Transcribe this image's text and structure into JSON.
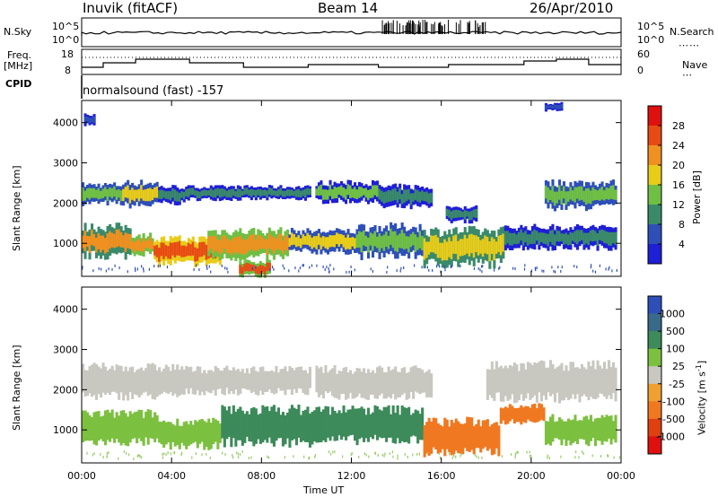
{
  "header": {
    "station": "Inuvik (fitACF)",
    "beam": "Beam 14",
    "date": "26/Apr/2010"
  },
  "top_panel": {
    "nsky_label": "N.Sky",
    "nsearch_label": "N.Search",
    "nsky_ticks": [
      "10^5",
      "10^0"
    ],
    "nsearch_ticks": [
      "10^5",
      "10^0"
    ],
    "freq_label_1": "Freq.",
    "freq_label_2": "[MHz]",
    "freq_ticks": [
      "18",
      "8"
    ],
    "nave_label": "Nave",
    "nave_ticks": [
      "60",
      "0"
    ],
    "cpid_label": "CPID",
    "cpid_value": "normalsound (fast) -157"
  },
  "colors": {
    "power_scale": [
      "#1f1fd6",
      "#2e4fb8",
      "#3a8a6a",
      "#6fbf45",
      "#e8cc1a",
      "#f09020",
      "#e84a14",
      "#e01010"
    ],
    "velocity_scale": [
      "#2e4fb8",
      "#3a6a8a",
      "#3d8a5a",
      "#7cc040",
      "#c8c8c0",
      "#f0a030",
      "#f07820",
      "#e04010",
      "#e01010"
    ]
  },
  "chart_data": [
    {
      "type": "heatmap",
      "title": "",
      "xlabel": "Time UT",
      "ylabel": "Slant Range [km]",
      "x_ticks": [
        "00:00",
        "04:00",
        "08:00",
        "12:00",
        "16:00",
        "20:00",
        "00:00"
      ],
      "y_ticks": [
        "1000",
        "2000",
        "3000",
        "4000"
      ],
      "xlim": [
        0,
        24
      ],
      "ylim": [
        180,
        4550
      ],
      "colorbar_label": "Power [dB]",
      "colorbar_ticks": [
        "4",
        "8",
        "12",
        "16",
        "20",
        "24",
        "28"
      ],
      "colorbar_range": [
        0,
        32
      ],
      "bands": [
        {
          "t": [
            0,
            1.8
          ],
          "r": [
            2000,
            2450
          ],
          "v": 14
        },
        {
          "t": [
            1.8,
            3.4
          ],
          "r": [
            1950,
            2500
          ],
          "v": 17
        },
        {
          "t": [
            3.4,
            4.6
          ],
          "r": [
            2000,
            2400
          ],
          "v": 11
        },
        {
          "t": [
            4.6,
            10.2
          ],
          "r": [
            2100,
            2400
          ],
          "v": 10
        },
        {
          "t": [
            10.4,
            13.2
          ],
          "r": [
            2050,
            2500
          ],
          "v": 13
        },
        {
          "t": [
            13.2,
            15.6
          ],
          "r": [
            1900,
            2400
          ],
          "v": 9
        },
        {
          "t": [
            20.6,
            23.8
          ],
          "r": [
            1900,
            2500
          ],
          "v": 15
        },
        {
          "t": [
            0,
            2.2
          ],
          "r": [
            700,
            1400
          ],
          "v": 20
        },
        {
          "t": [
            2.2,
            3.2
          ],
          "r": [
            750,
            1200
          ],
          "v": 22
        },
        {
          "t": [
            3.2,
            6.2
          ],
          "r": [
            500,
            1100
          ],
          "v": 27
        },
        {
          "t": [
            5.6,
            9.2
          ],
          "r": [
            650,
            1300
          ],
          "v": 23
        },
        {
          "t": [
            9.2,
            12.2
          ],
          "r": [
            800,
            1300
          ],
          "v": 17
        },
        {
          "t": [
            12.2,
            15.2
          ],
          "r": [
            700,
            1400
          ],
          "v": 14
        },
        {
          "t": [
            15.2,
            18.8
          ],
          "r": [
            500,
            1300
          ],
          "v": 19
        },
        {
          "t": [
            18.8,
            23.8
          ],
          "r": [
            900,
            1400
          ],
          "v": 11
        },
        {
          "t": [
            7.0,
            8.4
          ],
          "r": [
            200,
            550
          ],
          "v": 24
        },
        {
          "t": [
            16.2,
            17.6
          ],
          "r": [
            1550,
            1900
          ],
          "v": 9
        },
        {
          "t": [
            0.1,
            0.6
          ],
          "r": [
            3950,
            4200
          ],
          "v": 7
        },
        {
          "t": [
            20.6,
            21.4
          ],
          "r": [
            4300,
            4480
          ],
          "v": 7
        }
      ]
    },
    {
      "type": "heatmap",
      "title": "",
      "xlabel": "Time UT",
      "ylabel": "Slant Range [km]",
      "x_ticks": [
        "00:00",
        "04:00",
        "08:00",
        "12:00",
        "16:00",
        "20:00",
        "00:00"
      ],
      "y_ticks": [
        "1000",
        "2000",
        "3000",
        "4000"
      ],
      "xlim": [
        0,
        24
      ],
      "ylim": [
        180,
        4550
      ],
      "colorbar_label": "Velocity [m s^-1]",
      "colorbar_ticks": [
        "1000",
        "500",
        "100",
        "25",
        "-25",
        "-100",
        "-500",
        "-1000"
      ],
      "colorbar_range": [
        -1500,
        1500
      ],
      "bands": [
        {
          "t": [
            0,
            4.6
          ],
          "r": [
            1850,
            2550
          ],
          "v": 0
        },
        {
          "t": [
            4.6,
            10.2
          ],
          "r": [
            1950,
            2500
          ],
          "v": 0
        },
        {
          "t": [
            10.4,
            15.6
          ],
          "r": [
            1850,
            2500
          ],
          "v": 0
        },
        {
          "t": [
            18.0,
            23.8
          ],
          "r": [
            1800,
            2600
          ],
          "v": 0
        },
        {
          "t": [
            0,
            3.4
          ],
          "r": [
            700,
            1400
          ],
          "v": 60
        },
        {
          "t": [
            3.4,
            6.2
          ],
          "r": [
            600,
            1200
          ],
          "v": 50
        },
        {
          "t": [
            6.2,
            10.2
          ],
          "r": [
            700,
            1500
          ],
          "v": 180
        },
        {
          "t": [
            10.2,
            15.2
          ],
          "r": [
            750,
            1500
          ],
          "v": 150
        },
        {
          "t": [
            15.2,
            18.6
          ],
          "r": [
            450,
            1200
          ],
          "v": -250
        },
        {
          "t": [
            18.6,
            20.6
          ],
          "r": [
            1200,
            1600
          ],
          "v": -300
        },
        {
          "t": [
            20.6,
            23.8
          ],
          "r": [
            700,
            1300
          ],
          "v": 40
        }
      ]
    }
  ]
}
